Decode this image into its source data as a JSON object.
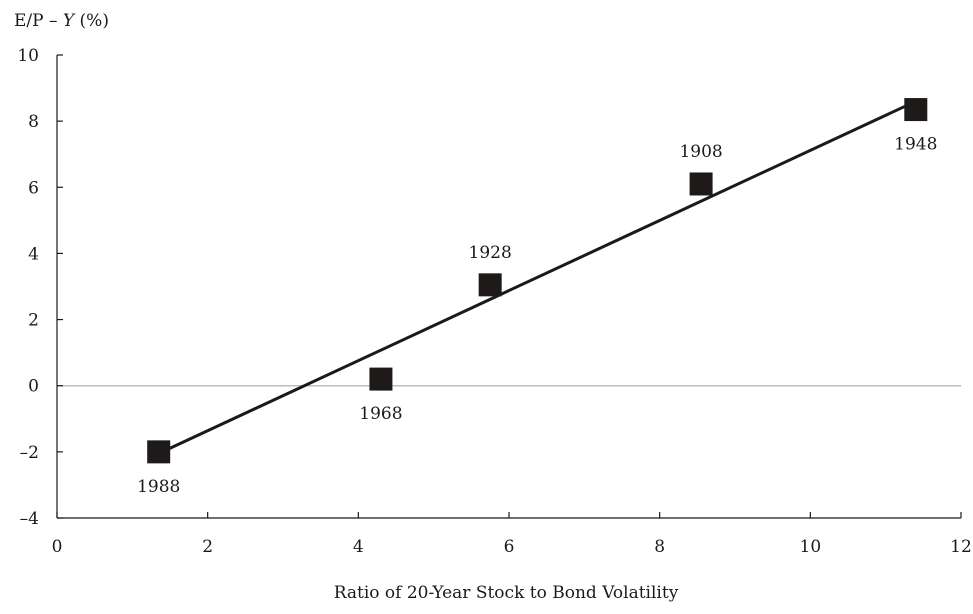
{
  "chart_data": {
    "type": "scatter",
    "title": "",
    "ylabel_parts": [
      "E/P – ",
      "Y",
      " (%)"
    ],
    "xlabel": "Ratio of 20-Year Stock to Bond Volatility",
    "xlim": [
      0,
      12
    ],
    "ylim": [
      -4,
      10
    ],
    "xticks": [
      0,
      2,
      4,
      6,
      8,
      10,
      12
    ],
    "yticks": [
      10,
      8,
      6,
      4,
      2,
      0,
      -2,
      -4
    ],
    "ytick_labels": [
      "10",
      "8",
      "6",
      "4",
      "2",
      "0",
      "–2",
      "–4"
    ],
    "grid": false,
    "zero_line": true,
    "points": [
      {
        "label": "1988",
        "x": 1.35,
        "y": -2.0,
        "label_pos": "below"
      },
      {
        "label": "1968",
        "x": 4.3,
        "y": 0.2,
        "label_pos": "below"
      },
      {
        "label": "1928",
        "x": 5.75,
        "y": 3.05,
        "label_pos": "above"
      },
      {
        "label": "1908",
        "x": 8.55,
        "y": 6.1,
        "label_pos": "above"
      },
      {
        "label": "1948",
        "x": 11.4,
        "y": 8.35,
        "label_pos": "below"
      }
    ],
    "fit_line": {
      "x": [
        1.35,
        11.4
      ],
      "y": [
        -2.05,
        8.6
      ]
    },
    "colors": {
      "marker": "#1f1a1a",
      "line": "#1a1a1a",
      "zero_line": "#bdbdbd",
      "axis": "#1a1a1a"
    }
  }
}
